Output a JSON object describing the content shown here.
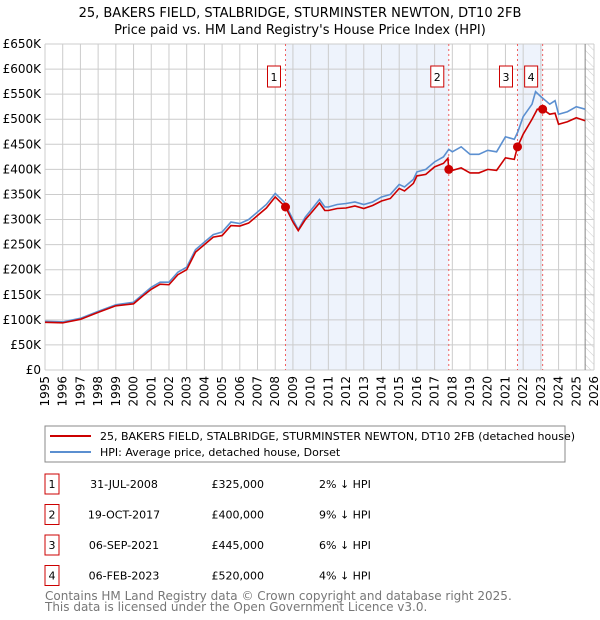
{
  "chart_data": {
    "type": "line",
    "title": "25, BAKERS FIELD, STALBRIDGE, STURMINSTER NEWTON, DT10 2FB",
    "subtitle": "Price paid vs. HM Land Registry's House Price Index (HPI)",
    "xlim": [
      1995,
      2026
    ],
    "ylim": [
      0,
      650000
    ],
    "x_ticks": [
      "1995",
      "1996",
      "1997",
      "1998",
      "1999",
      "2000",
      "2001",
      "2002",
      "2003",
      "2004",
      "2005",
      "2006",
      "2007",
      "2008",
      "2009",
      "2010",
      "2011",
      "2012",
      "2013",
      "2014",
      "2015",
      "2016",
      "2017",
      "2018",
      "2019",
      "2020",
      "2021",
      "2022",
      "2023",
      "2024",
      "2025",
      "2026"
    ],
    "y_ticks": [
      {
        "value": 0,
        "label": "£0"
      },
      {
        "value": 50000,
        "label": "£50K"
      },
      {
        "value": 100000,
        "label": "£100K"
      },
      {
        "value": 150000,
        "label": "£150K"
      },
      {
        "value": 200000,
        "label": "£200K"
      },
      {
        "value": 250000,
        "label": "£250K"
      },
      {
        "value": 300000,
        "label": "£300K"
      },
      {
        "value": 350000,
        "label": "£350K"
      },
      {
        "value": 400000,
        "label": "£400K"
      },
      {
        "value": 450000,
        "label": "£450K"
      },
      {
        "value": 500000,
        "label": "£500K"
      },
      {
        "value": 550000,
        "label": "£550K"
      },
      {
        "value": 600000,
        "label": "£600K"
      },
      {
        "value": 650000,
        "label": "£650K"
      }
    ],
    "grid": true,
    "series": [
      {
        "name": "25, BAKERS FIELD, STALBRIDGE, STURMINSTER NEWTON, DT10 2FB (detached house)",
        "color": "#cc0000",
        "points": [
          [
            1995,
            95
          ],
          [
            1996,
            94
          ],
          [
            1997,
            101
          ],
          [
            1998,
            115
          ],
          [
            1999,
            128
          ],
          [
            2000,
            132
          ],
          [
            2000.5,
            147
          ],
          [
            2001,
            161
          ],
          [
            2001.5,
            171
          ],
          [
            2002,
            170
          ],
          [
            2002.5,
            190
          ],
          [
            2003,
            200
          ],
          [
            2003.5,
            235
          ],
          [
            2004,
            250
          ],
          [
            2004.5,
            265
          ],
          [
            2005,
            268
          ],
          [
            2005.5,
            288
          ],
          [
            2006,
            287
          ],
          [
            2006.5,
            293
          ],
          [
            2007,
            308
          ],
          [
            2007.5,
            323
          ],
          [
            2008,
            345
          ],
          [
            2008.58,
            325
          ],
          [
            2009,
            295
          ],
          [
            2009.3,
            278
          ],
          [
            2009.7,
            300
          ],
          [
            2010,
            312
          ],
          [
            2010.5,
            333
          ],
          [
            2010.8,
            318
          ],
          [
            2011,
            318
          ],
          [
            2011.5,
            322
          ],
          [
            2012,
            323
          ],
          [
            2012.5,
            327
          ],
          [
            2013,
            322
          ],
          [
            2013.5,
            328
          ],
          [
            2014,
            337
          ],
          [
            2014.5,
            342
          ],
          [
            2015,
            362
          ],
          [
            2015.3,
            357
          ],
          [
            2015.8,
            372
          ],
          [
            2016,
            387
          ],
          [
            2016.5,
            390
          ],
          [
            2017,
            405
          ],
          [
            2017.5,
            412
          ],
          [
            2017.75,
            422
          ],
          [
            2017.8,
            400
          ],
          [
            2018,
            398
          ],
          [
            2018.5,
            403
          ],
          [
            2019,
            393
          ],
          [
            2019.5,
            393
          ],
          [
            2020,
            400
          ],
          [
            2020.5,
            398
          ],
          [
            2021,
            423
          ],
          [
            2021.5,
            420
          ],
          [
            2021.68,
            445
          ],
          [
            2022,
            470
          ],
          [
            2022.5,
            500
          ],
          [
            2022.8,
            520
          ],
          [
            2023.1,
            520
          ],
          [
            2023.5,
            510
          ],
          [
            2023.8,
            512
          ],
          [
            2024,
            490
          ],
          [
            2024.5,
            495
          ],
          [
            2025,
            503
          ],
          [
            2025.5,
            497
          ]
        ]
      },
      {
        "name": "HPI: Average price, detached house, Dorset",
        "color": "#5b8fd0",
        "points": [
          [
            1995,
            97
          ],
          [
            1996,
            96
          ],
          [
            1997,
            103
          ],
          [
            1998,
            117
          ],
          [
            1999,
            130
          ],
          [
            2000,
            135
          ],
          [
            2000.5,
            150
          ],
          [
            2001,
            165
          ],
          [
            2001.5,
            175
          ],
          [
            2002,
            175
          ],
          [
            2002.5,
            195
          ],
          [
            2003,
            205
          ],
          [
            2003.5,
            240
          ],
          [
            2004,
            255
          ],
          [
            2004.5,
            270
          ],
          [
            2005,
            275
          ],
          [
            2005.5,
            295
          ],
          [
            2006,
            292
          ],
          [
            2006.5,
            300
          ],
          [
            2007,
            315
          ],
          [
            2007.5,
            330
          ],
          [
            2008,
            352
          ],
          [
            2008.5,
            335
          ],
          [
            2009,
            300
          ],
          [
            2009.3,
            280
          ],
          [
            2009.7,
            305
          ],
          [
            2010,
            318
          ],
          [
            2010.5,
            340
          ],
          [
            2010.8,
            325
          ],
          [
            2011,
            325
          ],
          [
            2011.5,
            330
          ],
          [
            2012,
            332
          ],
          [
            2012.5,
            335
          ],
          [
            2013,
            330
          ],
          [
            2013.5,
            335
          ],
          [
            2014,
            345
          ],
          [
            2014.5,
            350
          ],
          [
            2015,
            370
          ],
          [
            2015.3,
            365
          ],
          [
            2015.8,
            380
          ],
          [
            2016,
            395
          ],
          [
            2016.5,
            400
          ],
          [
            2017,
            415
          ],
          [
            2017.5,
            425
          ],
          [
            2017.8,
            440
          ],
          [
            2018,
            435
          ],
          [
            2018.5,
            445
          ],
          [
            2019,
            430
          ],
          [
            2019.5,
            430
          ],
          [
            2020,
            438
          ],
          [
            2020.5,
            435
          ],
          [
            2021,
            465
          ],
          [
            2021.5,
            460
          ],
          [
            2021.7,
            475
          ],
          [
            2022,
            505
          ],
          [
            2022.5,
            530
          ],
          [
            2022.7,
            555
          ],
          [
            2023,
            545
          ],
          [
            2023.5,
            530
          ],
          [
            2023.8,
            537
          ],
          [
            2024,
            510
          ],
          [
            2024.5,
            515
          ],
          [
            2025,
            525
          ],
          [
            2025.5,
            520
          ]
        ]
      }
    ],
    "sales": [
      {
        "num": "1",
        "x": 2008.58,
        "value": 325000,
        "date": "31-JUL-2008",
        "price": "£325,000",
        "hpi": "2% ↓ HPI"
      },
      {
        "num": "2",
        "x": 2017.8,
        "value": 400000,
        "date": "19-OCT-2017",
        "price": "£400,000",
        "hpi": "9% ↓ HPI"
      },
      {
        "num": "3",
        "x": 2021.68,
        "value": 445000,
        "date": "06-SEP-2021",
        "price": "£445,000",
        "hpi": "6% ↓ HPI"
      },
      {
        "num": "4",
        "x": 2023.1,
        "value": 520000,
        "date": "06-FEB-2023",
        "price": "£520,000",
        "hpi": "4% ↓ HPI"
      }
    ],
    "shaded_ranges": [
      [
        2008.58,
        2017.8
      ],
      [
        2021.68,
        2023.1
      ]
    ],
    "forecast_start": 2025.5,
    "legend_position": "below"
  },
  "footer": {
    "line1": "Contains HM Land Registry data © Crown copyright and database right 2025.",
    "line2": "This data is licensed under the Open Government Licence v3.0."
  }
}
